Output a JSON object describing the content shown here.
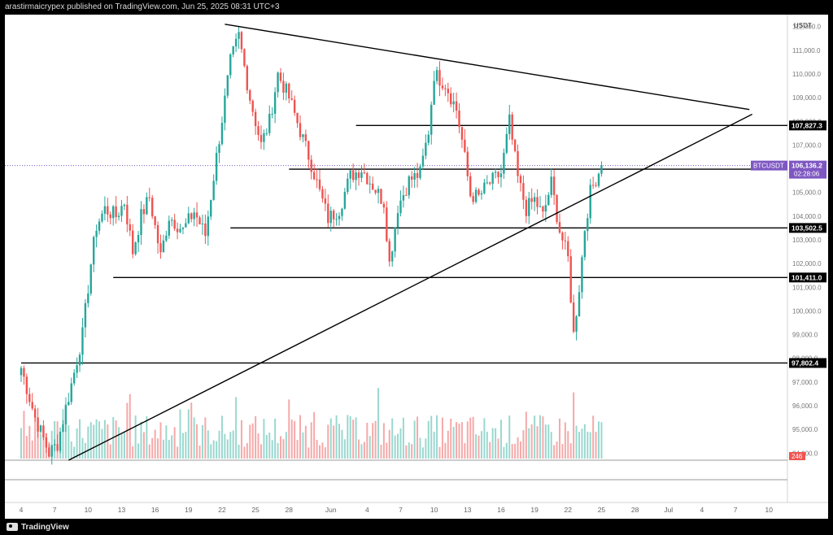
{
  "header": {
    "publisher_text": "arastirmaicrypex published on TradingView.com, Jun 25, 2025 08:31 UTC+3"
  },
  "footer": {
    "brand": "TradingView"
  },
  "chart_data": {
    "type": "candlestick",
    "symbol": "BTCUSDT",
    "currency": "USDT",
    "last_price": "106,136.2",
    "countdown": "02:28:06",
    "volume_badge": "246",
    "ylim": [
      93700,
      112300
    ],
    "y_ticks": [
      {
        "v": 112000,
        "t": "112,000.0"
      },
      {
        "v": 111000,
        "t": "111,000.0"
      },
      {
        "v": 110000,
        "t": "110,000.0"
      },
      {
        "v": 109000,
        "t": "109,000.0"
      },
      {
        "v": 108000,
        "t": "108,000.0"
      },
      {
        "v": 107000,
        "t": "107,000.0"
      },
      {
        "v": 106000,
        "t": "106,000.0"
      },
      {
        "v": 105000,
        "t": "105,000.0"
      },
      {
        "v": 104000,
        "t": "104,000.0"
      },
      {
        "v": 103000,
        "t": "103,000.0"
      },
      {
        "v": 102000,
        "t": "102,000.0"
      },
      {
        "v": 101000,
        "t": "101,000.0"
      },
      {
        "v": 100000,
        "t": "100,000.0"
      },
      {
        "v": 99000,
        "t": "99,000.0"
      },
      {
        "v": 98000,
        "t": "98,000.0"
      },
      {
        "v": 97000,
        "t": "97,000.0"
      },
      {
        "v": 96000,
        "t": "96,000.0"
      },
      {
        "v": 95000,
        "t": "95,000.0"
      },
      {
        "v": 94000,
        "t": "94,000.0"
      }
    ],
    "x_ticks": [
      {
        "i": 0,
        "t": "4"
      },
      {
        "i": 12,
        "t": "7"
      },
      {
        "i": 24,
        "t": "10"
      },
      {
        "i": 36,
        "t": "13"
      },
      {
        "i": 48,
        "t": "16"
      },
      {
        "i": 60,
        "t": "19"
      },
      {
        "i": 72,
        "t": "22"
      },
      {
        "i": 84,
        "t": "25"
      },
      {
        "i": 96,
        "t": "28"
      },
      {
        "i": 111,
        "t": "Jun"
      },
      {
        "i": 124,
        "t": "4"
      },
      {
        "i": 136,
        "t": "7"
      },
      {
        "i": 148,
        "t": "10"
      },
      {
        "i": 160,
        "t": "13"
      },
      {
        "i": 172,
        "t": "16"
      },
      {
        "i": 184,
        "t": "19"
      },
      {
        "i": 196,
        "t": "22"
      },
      {
        "i": 208,
        "t": "25"
      },
      {
        "i": 220,
        "t": "28"
      },
      {
        "i": 232,
        "t": "Jul"
      },
      {
        "i": 244,
        "t": "4"
      },
      {
        "i": 256,
        "t": "7"
      },
      {
        "i": 268,
        "t": "10"
      }
    ],
    "levels": [
      {
        "price": 107827.3,
        "label": "107,827.3",
        "from_index": 120
      },
      {
        "price": 105984.0,
        "label": "105,984.0",
        "from_index": 96
      },
      {
        "price": 103502.5,
        "label": "103,502.5",
        "from_index": 75
      },
      {
        "price": 101411.0,
        "label": "101,411.0",
        "from_index": 33
      },
      {
        "price": 97802.4,
        "label": "97,802.4",
        "from_index": 0
      }
    ],
    "trendlines": [
      {
        "name": "resistance",
        "from": {
          "i": 73,
          "p": 112100
        },
        "to": {
          "i": 261,
          "p": 108500
        }
      },
      {
        "name": "support",
        "from": {
          "i": 17,
          "p": 93700
        },
        "to": {
          "i": 262,
          "p": 108300
        }
      }
    ],
    "anchors": [
      [
        0,
        97600
      ],
      [
        5,
        95500
      ],
      [
        10,
        94000
      ],
      [
        13,
        94400
      ],
      [
        19,
        97400
      ],
      [
        22,
        99000
      ],
      [
        25,
        102000
      ],
      [
        27,
        103600
      ],
      [
        30,
        104300
      ],
      [
        34,
        104000
      ],
      [
        37,
        104600
      ],
      [
        40,
        102500
      ],
      [
        43,
        104000
      ],
      [
        46,
        104800
      ],
      [
        50,
        102300
      ],
      [
        53,
        104000
      ],
      [
        58,
        103400
      ],
      [
        62,
        104200
      ],
      [
        66,
        103200
      ],
      [
        70,
        106500
      ],
      [
        75,
        110500
      ],
      [
        78,
        111600
      ],
      [
        82,
        109000
      ],
      [
        86,
        107000
      ],
      [
        89,
        108000
      ],
      [
        92,
        110000
      ],
      [
        96,
        109000
      ],
      [
        100,
        107600
      ],
      [
        104,
        106200
      ],
      [
        107,
        105000
      ],
      [
        110,
        103900
      ],
      [
        114,
        104300
      ],
      [
        118,
        105700
      ],
      [
        122,
        106000
      ],
      [
        126,
        105300
      ],
      [
        130,
        104600
      ],
      [
        132,
        102000
      ],
      [
        135,
        104400
      ],
      [
        139,
        105500
      ],
      [
        143,
        105800
      ],
      [
        146,
        107600
      ],
      [
        148,
        110000
      ],
      [
        152,
        109600
      ],
      [
        156,
        108500
      ],
      [
        158,
        107200
      ],
      [
        161,
        104900
      ],
      [
        164,
        104800
      ],
      [
        167,
        105300
      ],
      [
        172,
        105800
      ],
      [
        175,
        108000
      ],
      [
        178,
        105600
      ],
      [
        181,
        104300
      ],
      [
        184,
        104700
      ],
      [
        187,
        104000
      ],
      [
        190,
        105400
      ],
      [
        193,
        103400
      ],
      [
        196,
        102200
      ],
      [
        198,
        99000
      ],
      [
        200,
        101000
      ],
      [
        202,
        103500
      ],
      [
        204,
        105000
      ],
      [
        206,
        105600
      ],
      [
        208,
        106136
      ]
    ]
  }
}
